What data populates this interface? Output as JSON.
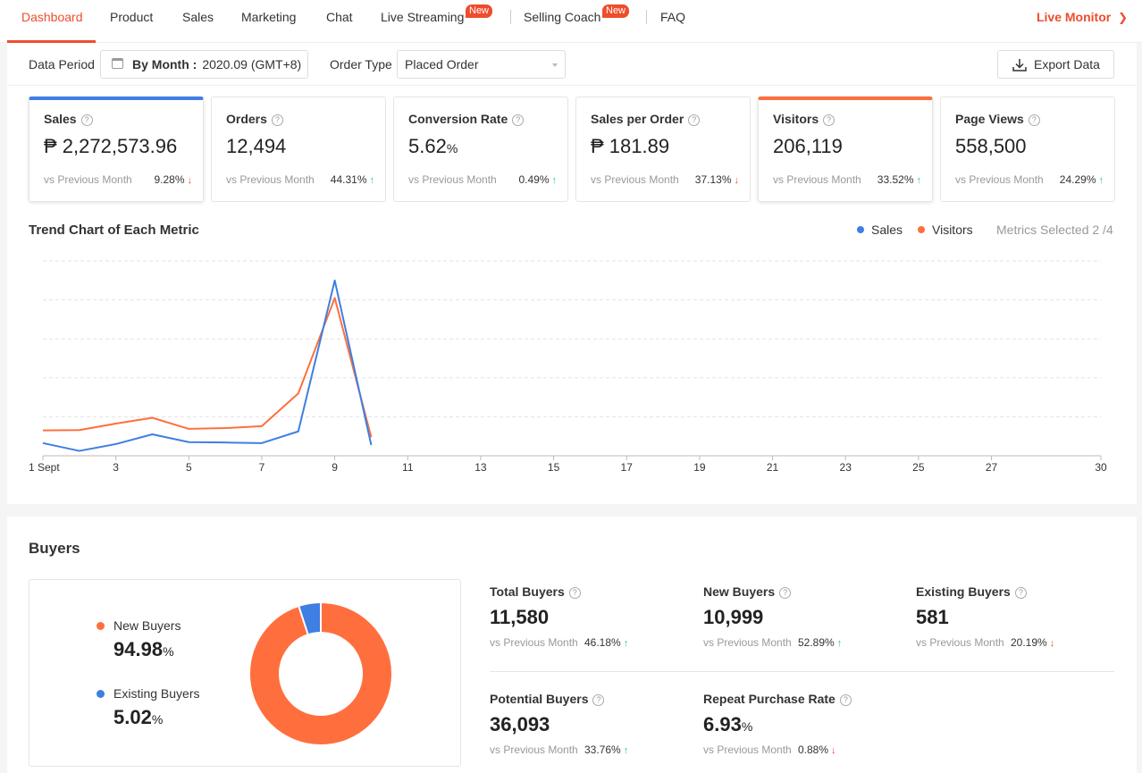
{
  "nav": {
    "items": [
      {
        "label": "Dashboard",
        "active": true
      },
      {
        "label": "Product"
      },
      {
        "label": "Sales"
      },
      {
        "label": "Marketing"
      },
      {
        "label": "Chat"
      },
      {
        "label": "Live Streaming",
        "badge": "New"
      },
      {
        "label": "Selling Coach",
        "badge": "New"
      },
      {
        "label": "FAQ"
      }
    ],
    "live_monitor": "Live Monitor",
    "accent_color": "#ee4d2d"
  },
  "filter": {
    "data_period_label": "Data Period",
    "period_mode": "By Month :",
    "period_value": "2020.09 (GMT+8)",
    "order_type_label": "Order Type",
    "order_type_value": "Placed Order",
    "export_label": "Export Data"
  },
  "metrics": [
    {
      "title": "Sales",
      "value": "₱ 2,272,573.96",
      "vs": "vs Previous Month",
      "change": "9.28%",
      "direction": "down",
      "selected": "blue"
    },
    {
      "title": "Orders",
      "value": "12,494",
      "vs": "vs Previous Month",
      "change": "44.31%",
      "direction": "up"
    },
    {
      "title": "Conversion Rate",
      "value": "5.62",
      "unit": "%",
      "vs": "vs Previous Month",
      "change": "0.49%",
      "direction": "up"
    },
    {
      "title": "Sales per Order",
      "value": "₱ 181.89",
      "vs": "vs Previous Month",
      "change": "37.13%",
      "direction": "down"
    },
    {
      "title": "Visitors",
      "value": "206,119",
      "vs": "vs Previous Month",
      "change": "33.52%",
      "direction": "up",
      "selected": "orange"
    },
    {
      "title": "Page Views",
      "value": "558,500",
      "vs": "vs Previous Month",
      "change": "24.29%",
      "direction": "up"
    }
  ],
  "trend": {
    "title": "Trend Chart of Each Metric",
    "metrics_selected": "Metrics Selected 2 /4",
    "legend": [
      {
        "name": "Sales",
        "color": "#3f7ee2"
      },
      {
        "name": "Visitors",
        "color": "#ff6f3d"
      }
    ]
  },
  "chart_data": {
    "type": "line",
    "x": [
      1,
      2,
      3,
      4,
      5,
      6,
      7,
      8,
      9,
      10
    ],
    "x_ticks": [
      "1 Sept",
      "3",
      "5",
      "7",
      "9",
      "11",
      "13",
      "15",
      "17",
      "19",
      "21",
      "23",
      "25",
      "27",
      "30"
    ],
    "x_tick_values": [
      1,
      3,
      5,
      7,
      9,
      11,
      13,
      15,
      17,
      19,
      21,
      23,
      25,
      27,
      30
    ],
    "xlim": [
      1,
      30
    ],
    "ylim": [
      0,
      100
    ],
    "grid": true,
    "legend_position": "top-right",
    "series": [
      {
        "name": "Sales",
        "color": "#3f7ee2",
        "values": [
          6.5,
          2.5,
          6.0,
          11.0,
          7.0,
          6.8,
          6.5,
          12.5,
          90.0,
          5.5
        ]
      },
      {
        "name": "Visitors",
        "color": "#ff6f3d",
        "values": [
          13.0,
          13.2,
          16.5,
          19.5,
          13.8,
          14.2,
          15.2,
          32.0,
          81.0,
          9.5
        ]
      }
    ]
  },
  "buyers": {
    "title": "Buyers",
    "donut": [
      {
        "name": "New Buyers",
        "value": 94.98,
        "display": "94.98",
        "unit": "%",
        "color": "#ff6f3d"
      },
      {
        "name": "Existing Buyers",
        "value": 5.02,
        "display": "5.02",
        "unit": "%",
        "color": "#3f7ee2"
      }
    ],
    "metrics": [
      {
        "title": "Total Buyers",
        "value": "11,580",
        "vs": "vs Previous Month",
        "change": "46.18%",
        "direction": "up"
      },
      {
        "title": "New Buyers",
        "value": "10,999",
        "vs": "vs Previous Month",
        "change": "52.89%",
        "direction": "up"
      },
      {
        "title": "Existing Buyers",
        "value": "581",
        "vs": "vs Previous Month",
        "change": "20.19%",
        "direction": "down"
      },
      {
        "title": "Potential Buyers",
        "value": "36,093",
        "vs": "vs Previous Month",
        "change": "33.76%",
        "direction": "up"
      },
      {
        "title": "Repeat Purchase Rate",
        "value": "6.93",
        "unit": "%",
        "vs": "vs Previous Month",
        "change": "0.88%",
        "direction": "down"
      }
    ]
  }
}
